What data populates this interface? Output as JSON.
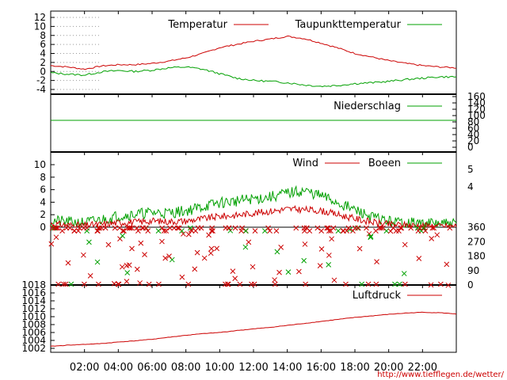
{
  "source_url": "http://www.tiefflegen.de/wetter/",
  "x_ticks": [
    "02:00",
    "04:00",
    "06:00",
    "08:00",
    "10:00",
    "12:00",
    "14:00",
    "16:00",
    "18:00",
    "20:00",
    "22:00"
  ],
  "colors": {
    "red": "#cc0000",
    "green": "#00a000",
    "grid": "#999999"
  },
  "chart_data": [
    {
      "type": "line",
      "legend": [
        "Temperatur",
        "Taupunkttemperatur"
      ],
      "ylim": [
        -4,
        12
      ],
      "y_ticks": [
        "12",
        "10",
        "8",
        "6",
        "4",
        "2",
        "0",
        "-2",
        "-4"
      ],
      "x": [
        0,
        1,
        2,
        3,
        4,
        5,
        6,
        7,
        8,
        9,
        10,
        11,
        12,
        13,
        14,
        15,
        16,
        17,
        18,
        19,
        20,
        21,
        22,
        23,
        24
      ],
      "series": [
        {
          "name": "Temperatur",
          "color": "#cc0000",
          "values": [
            1.3,
            1.0,
            0.5,
            1.2,
            1.5,
            1.5,
            1.8,
            2.3,
            3.0,
            4.0,
            5.3,
            6.0,
            6.7,
            7.2,
            7.8,
            7.3,
            6.3,
            5.2,
            4.0,
            3.2,
            2.4,
            1.8,
            1.3,
            1.0,
            0.8
          ]
        },
        {
          "name": "Taupunkttemperatur",
          "color": "#00a000",
          "values": [
            -0.3,
            -0.6,
            -0.8,
            -0.1,
            0.2,
            0.0,
            0.3,
            0.8,
            1.0,
            0.5,
            -0.5,
            -1.5,
            -2.0,
            -2.2,
            -2.5,
            -3.0,
            -3.3,
            -3.1,
            -2.7,
            -2.5,
            -2.2,
            -1.8,
            -1.5,
            -1.2,
            -1.2
          ]
        }
      ]
    },
    {
      "type": "line",
      "legend": [
        "Niederschlag"
      ],
      "y_ticks": [
        "160",
        "140",
        "120",
        "100",
        "80",
        "60",
        "40",
        "20",
        "0"
      ],
      "series": [
        {
          "name": "Niederschlag",
          "color": "#00a000",
          "level": 100
        }
      ]
    },
    {
      "type": "line",
      "legend": [
        "Wind",
        "Boeen"
      ],
      "ylim": [
        0,
        11
      ],
      "y_ticks": [
        "10",
        "8",
        "6",
        "4",
        "2",
        "0"
      ],
      "right_ticks": [
        "5",
        "4"
      ],
      "direction_ticks": [
        "360",
        "270",
        "180",
        "90",
        "0"
      ],
      "x": [
        0,
        1,
        2,
        3,
        4,
        5,
        6,
        7,
        8,
        9,
        10,
        11,
        12,
        13,
        14,
        15,
        16,
        17,
        18,
        19,
        20,
        21,
        22,
        23,
        24
      ],
      "series": [
        {
          "name": "Wind",
          "color": "#cc0000",
          "values": [
            0.6,
            0.4,
            0.3,
            0.5,
            0.8,
            0.9,
            1.1,
            1.0,
            1.1,
            1.5,
            1.9,
            2.1,
            2.5,
            2.8,
            3.2,
            3.1,
            2.9,
            2.2,
            1.5,
            0.9,
            0.5,
            0.4,
            0.3,
            0.2,
            0.2
          ]
        },
        {
          "name": "Boeen",
          "color": "#00a000",
          "values": [
            1.2,
            0.9,
            0.8,
            1.3,
            2.0,
            2.3,
            2.6,
            2.5,
            2.9,
            3.6,
            4.3,
            4.6,
            5.0,
            5.3,
            6.0,
            6.4,
            5.5,
            4.3,
            3.0,
            1.8,
            1.0,
            0.8,
            0.7,
            0.6,
            0.5
          ]
        }
      ]
    },
    {
      "type": "line",
      "legend": [
        "Luftdruck"
      ],
      "ylim": [
        1002,
        1018
      ],
      "y_ticks": [
        "1018",
        "1016",
        "1014",
        "1012",
        "1010",
        "1008",
        "1006",
        "1004",
        "1002"
      ],
      "x": [
        0,
        1,
        2,
        3,
        4,
        5,
        6,
        7,
        8,
        9,
        10,
        11,
        12,
        13,
        14,
        15,
        16,
        17,
        18,
        19,
        20,
        21,
        22,
        23,
        24
      ],
      "series": [
        {
          "name": "Luftdruck",
          "color": "#cc0000",
          "values": [
            1002.5,
            1002.8,
            1003.0,
            1003.2,
            1003.6,
            1003.9,
            1004.3,
            1004.8,
            1005.3,
            1005.7,
            1006.0,
            1006.5,
            1006.9,
            1007.3,
            1007.8,
            1008.3,
            1008.8,
            1009.3,
            1009.8,
            1010.2,
            1010.6,
            1010.9,
            1011.1,
            1011.0,
            1010.7
          ]
        }
      ]
    }
  ]
}
